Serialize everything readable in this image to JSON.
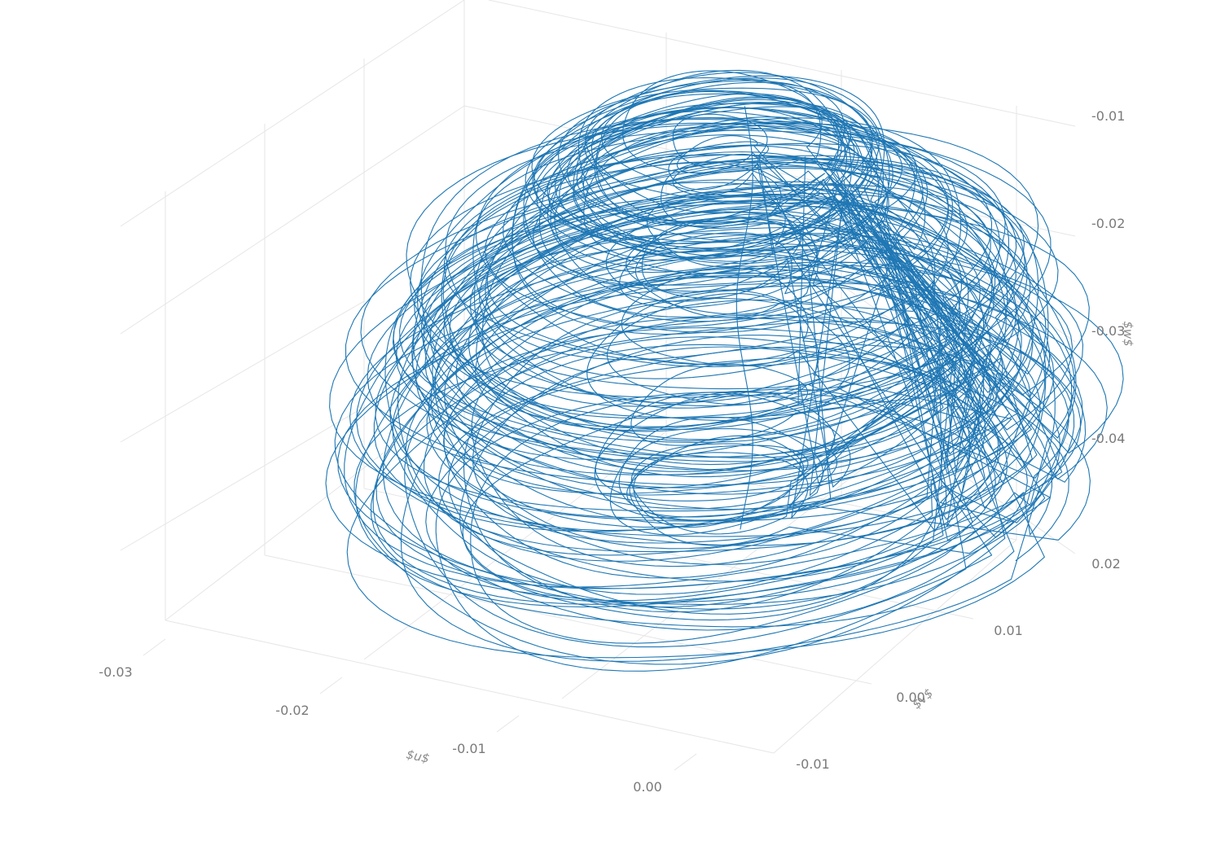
{
  "chart_data": {
    "type": "line3d",
    "title": "",
    "series_color": "#1f77b4",
    "axes": {
      "x": {
        "label": "$u$",
        "ticks": [
          "-0.03",
          "-0.02",
          "-0.01",
          "0.00"
        ],
        "range": [
          -0.03,
          0.0
        ]
      },
      "y": {
        "label": "$v$",
        "ticks": [
          "-0.01",
          "0.00",
          "0.01",
          "0.02"
        ],
        "range": [
          -0.01,
          0.02
        ]
      },
      "z": {
        "label": "$w$",
        "ticks": [
          "-0.01",
          "-0.02",
          "-0.03",
          "-0.04"
        ],
        "range": [
          -0.045,
          -0.01
        ]
      }
    },
    "grid": true,
    "legend": "none",
    "attractor": {
      "center": {
        "u": -0.01,
        "v": 0.005,
        "w": -0.028
      },
      "w_range": [
        -0.045,
        -0.015
      ],
      "turns": 140
    }
  }
}
